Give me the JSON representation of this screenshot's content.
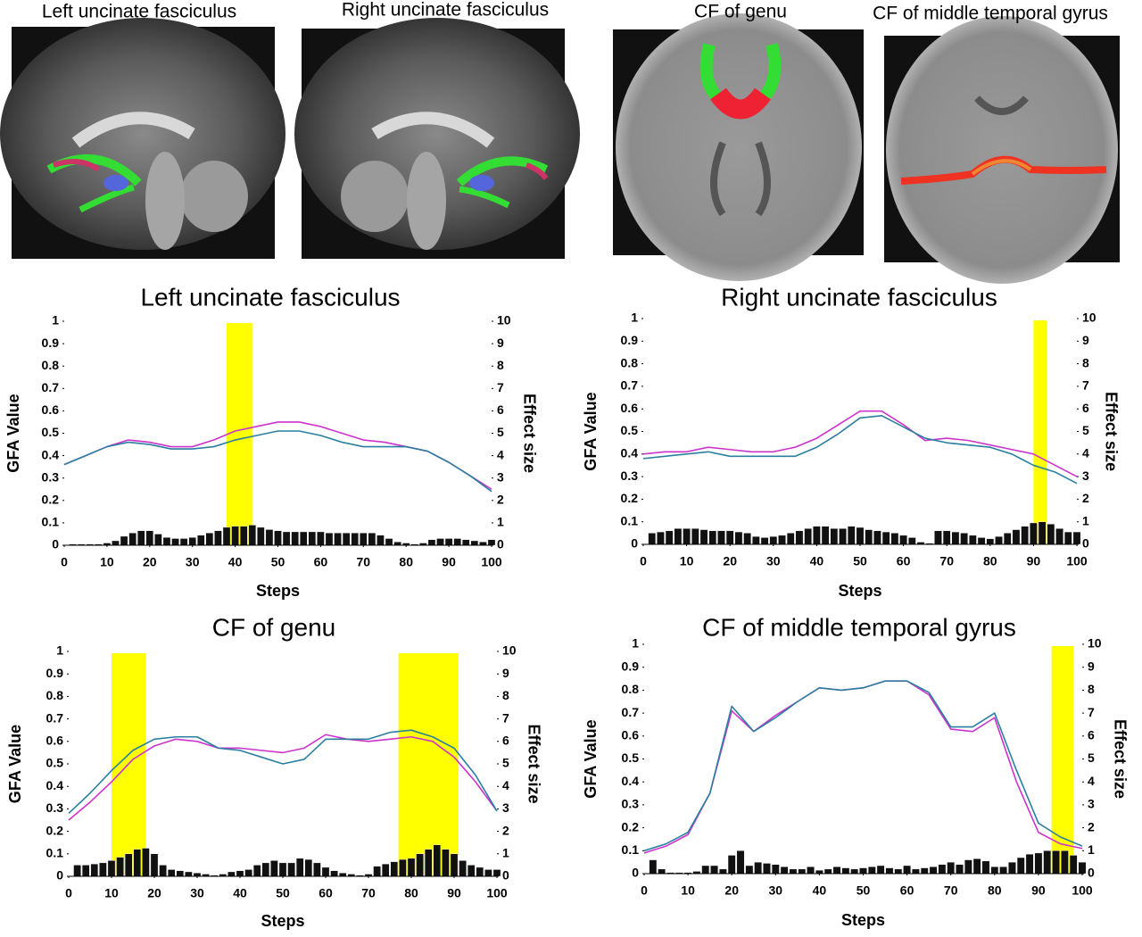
{
  "images": [
    {
      "caption": "Left uncinate fasciculus"
    },
    {
      "caption": "Right uncinate fasciculus"
    },
    {
      "caption": "CF of genu"
    },
    {
      "caption": "CF of middle temporal gyrus"
    }
  ],
  "chart_data": [
    {
      "type": "line",
      "title": "Left uncinate fasciculus",
      "xlabel": "Steps",
      "ylabel": "GFA Value",
      "y2label": "Effect size",
      "xlim": [
        0,
        100
      ],
      "xticks": [
        0,
        10,
        20,
        30,
        40,
        50,
        60,
        70,
        80,
        90,
        100
      ],
      "ylim": [
        0,
        1
      ],
      "yticks": [
        0,
        0.1,
        0.2,
        0.3,
        0.4,
        0.5,
        0.6,
        0.7,
        0.8,
        0.9,
        1
      ],
      "y2lim": [
        0,
        10
      ],
      "y2ticks": [
        0,
        1,
        2,
        3,
        4,
        5,
        6,
        7,
        8,
        9,
        10
      ],
      "x": [
        0,
        5,
        10,
        15,
        20,
        25,
        30,
        35,
        40,
        45,
        50,
        55,
        60,
        65,
        70,
        75,
        80,
        85,
        90,
        95,
        100
      ],
      "series": [
        {
          "color": "#cc33cc",
          "values": [
            0.36,
            0.4,
            0.44,
            0.47,
            0.46,
            0.44,
            0.44,
            0.47,
            0.51,
            0.53,
            0.55,
            0.55,
            0.53,
            0.5,
            0.47,
            0.46,
            0.44,
            0.42,
            0.37,
            0.31,
            0.25
          ]
        },
        {
          "color": "#2a7fa0",
          "values": [
            0.36,
            0.4,
            0.44,
            0.46,
            0.45,
            0.43,
            0.43,
            0.44,
            0.47,
            0.49,
            0.51,
            0.51,
            0.49,
            0.46,
            0.44,
            0.44,
            0.44,
            0.42,
            0.37,
            0.31,
            0.24
          ]
        }
      ],
      "bars": {
        "color": "#111111",
        "axis": "y2",
        "x": [
          2,
          4,
          6,
          8,
          10,
          12,
          14,
          16,
          18,
          20,
          22,
          24,
          26,
          28,
          30,
          32,
          34,
          36,
          38,
          40,
          42,
          44,
          46,
          48,
          50,
          52,
          54,
          56,
          58,
          60,
          62,
          64,
          66,
          68,
          70,
          72,
          74,
          76,
          78,
          80,
          82,
          84,
          86,
          88,
          90,
          92,
          94,
          96,
          98,
          100
        ],
        "values": [
          0.05,
          0.05,
          0.05,
          0.05,
          0.1,
          0.2,
          0.4,
          0.55,
          0.65,
          0.65,
          0.5,
          0.35,
          0.3,
          0.3,
          0.35,
          0.45,
          0.55,
          0.65,
          0.8,
          0.85,
          0.85,
          0.9,
          0.8,
          0.7,
          0.65,
          0.6,
          0.6,
          0.6,
          0.6,
          0.6,
          0.55,
          0.55,
          0.55,
          0.55,
          0.55,
          0.55,
          0.45,
          0.3,
          0.15,
          0.1,
          0.05,
          0.1,
          0.25,
          0.3,
          0.3,
          0.3,
          0.25,
          0.2,
          0.15,
          0.25
        ]
      },
      "highlights": [
        [
          38,
          44
        ]
      ],
      "highlight_color": "#ffff00"
    },
    {
      "type": "line",
      "title": "Right uncinate fasciculus",
      "xlabel": "Steps",
      "ylabel": "GFA Value",
      "y2label": "Effect size",
      "xlim": [
        0,
        100
      ],
      "xticks": [
        0,
        10,
        20,
        30,
        40,
        50,
        60,
        70,
        80,
        90,
        100
      ],
      "ylim": [
        0,
        1
      ],
      "yticks": [
        0,
        0.1,
        0.2,
        0.3,
        0.4,
        0.5,
        0.6,
        0.7,
        0.8,
        0.9,
        1
      ],
      "y2lim": [
        0,
        10
      ],
      "y2ticks": [
        0,
        1,
        2,
        3,
        4,
        5,
        6,
        7,
        8,
        9,
        10
      ],
      "x": [
        0,
        5,
        10,
        15,
        20,
        25,
        30,
        35,
        40,
        45,
        50,
        55,
        60,
        65,
        70,
        75,
        80,
        85,
        90,
        95,
        100
      ],
      "series": [
        {
          "color": "#cc33cc",
          "values": [
            0.4,
            0.41,
            0.41,
            0.43,
            0.42,
            0.41,
            0.41,
            0.43,
            0.47,
            0.53,
            0.59,
            0.59,
            0.53,
            0.46,
            0.47,
            0.46,
            0.44,
            0.42,
            0.4,
            0.35,
            0.3
          ]
        },
        {
          "color": "#2a7fa0",
          "values": [
            0.38,
            0.39,
            0.4,
            0.41,
            0.39,
            0.39,
            0.39,
            0.39,
            0.43,
            0.49,
            0.56,
            0.57,
            0.52,
            0.47,
            0.45,
            0.44,
            0.43,
            0.4,
            0.35,
            0.32,
            0.27
          ]
        }
      ],
      "bars": {
        "color": "#111111",
        "axis": "y2",
        "x": [
          2,
          4,
          6,
          8,
          10,
          12,
          14,
          16,
          18,
          20,
          22,
          24,
          26,
          28,
          30,
          32,
          34,
          36,
          38,
          40,
          42,
          44,
          46,
          48,
          50,
          52,
          54,
          56,
          58,
          60,
          62,
          64,
          66,
          68,
          70,
          72,
          74,
          76,
          78,
          80,
          82,
          84,
          86,
          88,
          90,
          92,
          94,
          96,
          98,
          100
        ],
        "values": [
          0.5,
          0.55,
          0.6,
          0.7,
          0.7,
          0.7,
          0.65,
          0.6,
          0.6,
          0.6,
          0.55,
          0.5,
          0.35,
          0.3,
          0.35,
          0.4,
          0.5,
          0.6,
          0.7,
          0.8,
          0.8,
          0.7,
          0.7,
          0.8,
          0.75,
          0.65,
          0.6,
          0.55,
          0.5,
          0.4,
          0.3,
          0.1,
          0.05,
          0.6,
          0.6,
          0.55,
          0.5,
          0.4,
          0.3,
          0.25,
          0.35,
          0.5,
          0.65,
          0.8,
          0.95,
          1.0,
          0.9,
          0.7,
          0.55,
          0.55
        ]
      },
      "highlights": [
        [
          90,
          93
        ]
      ],
      "highlight_color": "#ffff00"
    },
    {
      "type": "line",
      "title": "CF of genu",
      "xlabel": "Steps",
      "ylabel": "GFA Value",
      "y2label": "Effect size",
      "xlim": [
        0,
        100
      ],
      "xticks": [
        0,
        10,
        20,
        30,
        40,
        50,
        60,
        70,
        80,
        90,
        100
      ],
      "ylim": [
        0,
        1
      ],
      "yticks": [
        0,
        0.1,
        0.2,
        0.3,
        0.4,
        0.5,
        0.6,
        0.7,
        0.8,
        0.9,
        1
      ],
      "y2lim": [
        0,
        10
      ],
      "y2ticks": [
        0,
        1,
        2,
        3,
        4,
        5,
        6,
        7,
        8,
        9,
        10
      ],
      "x": [
        0,
        5,
        10,
        15,
        20,
        25,
        30,
        35,
        40,
        45,
        50,
        55,
        60,
        65,
        70,
        75,
        80,
        85,
        90,
        95,
        100
      ],
      "series": [
        {
          "color": "#cc33cc",
          "values": [
            0.25,
            0.33,
            0.42,
            0.52,
            0.58,
            0.61,
            0.6,
            0.57,
            0.57,
            0.56,
            0.55,
            0.57,
            0.63,
            0.61,
            0.6,
            0.61,
            0.62,
            0.6,
            0.53,
            0.42,
            0.29
          ]
        },
        {
          "color": "#2a7fa0",
          "values": [
            0.28,
            0.37,
            0.47,
            0.56,
            0.61,
            0.62,
            0.62,
            0.57,
            0.56,
            0.53,
            0.5,
            0.52,
            0.61,
            0.61,
            0.61,
            0.64,
            0.65,
            0.62,
            0.57,
            0.45,
            0.29
          ]
        }
      ],
      "bars": {
        "color": "#111111",
        "axis": "y2",
        "x": [
          2,
          4,
          6,
          8,
          10,
          12,
          14,
          16,
          18,
          20,
          22,
          24,
          26,
          28,
          30,
          32,
          34,
          36,
          38,
          40,
          42,
          44,
          46,
          48,
          50,
          52,
          54,
          56,
          58,
          60,
          62,
          64,
          66,
          68,
          70,
          72,
          74,
          76,
          78,
          80,
          82,
          84,
          86,
          88,
          90,
          92,
          94,
          96,
          98,
          100
        ],
        "values": [
          0.5,
          0.5,
          0.55,
          0.6,
          0.7,
          0.85,
          1.0,
          1.2,
          1.25,
          1.0,
          0.5,
          0.3,
          0.25,
          0.2,
          0.15,
          0.1,
          0.05,
          0.1,
          0.2,
          0.25,
          0.3,
          0.5,
          0.6,
          0.7,
          0.6,
          0.6,
          0.8,
          0.75,
          0.6,
          0.4,
          0.25,
          0.15,
          0.1,
          0.05,
          0.1,
          0.45,
          0.55,
          0.65,
          0.75,
          0.8,
          1.0,
          1.2,
          1.4,
          1.2,
          1.0,
          0.7,
          0.5,
          0.4,
          0.3,
          0.3
        ]
      },
      "highlights": [
        [
          10,
          18
        ],
        [
          77,
          91
        ]
      ],
      "highlight_color": "#ffff00"
    },
    {
      "type": "line",
      "title": "CF of middle temporal gyrus",
      "xlabel": "Steps",
      "ylabel": "GFA Value",
      "y2label": "Effect size",
      "xlim": [
        0,
        100
      ],
      "xticks": [
        0,
        10,
        20,
        30,
        40,
        50,
        60,
        70,
        80,
        90,
        100
      ],
      "ylim": [
        0,
        1
      ],
      "yticks": [
        0,
        0.1,
        0.2,
        0.3,
        0.4,
        0.5,
        0.6,
        0.7,
        0.8,
        0.9,
        1
      ],
      "y2lim": [
        0,
        10
      ],
      "y2ticks": [
        0,
        1,
        2,
        3,
        4,
        5,
        6,
        7,
        8,
        9,
        10
      ],
      "x": [
        0,
        5,
        10,
        15,
        20,
        25,
        30,
        35,
        40,
        45,
        50,
        55,
        60,
        65,
        70,
        75,
        80,
        85,
        90,
        95,
        100
      ],
      "series": [
        {
          "color": "#cc33cc",
          "values": [
            0.09,
            0.12,
            0.17,
            0.35,
            0.71,
            0.62,
            0.69,
            0.75,
            0.81,
            0.8,
            0.81,
            0.84,
            0.84,
            0.78,
            0.63,
            0.62,
            0.68,
            0.4,
            0.18,
            0.13,
            0.11
          ]
        },
        {
          "color": "#2a7fa0",
          "values": [
            0.1,
            0.13,
            0.18,
            0.35,
            0.73,
            0.62,
            0.68,
            0.75,
            0.81,
            0.8,
            0.81,
            0.84,
            0.84,
            0.79,
            0.64,
            0.64,
            0.7,
            0.45,
            0.22,
            0.16,
            0.12
          ]
        }
      ],
      "bars": {
        "color": "#111111",
        "axis": "y2",
        "x": [
          2,
          4,
          6,
          8,
          10,
          12,
          14,
          16,
          18,
          20,
          22,
          24,
          26,
          28,
          30,
          32,
          34,
          36,
          38,
          40,
          42,
          44,
          46,
          48,
          50,
          52,
          54,
          56,
          58,
          60,
          62,
          64,
          66,
          68,
          70,
          72,
          74,
          76,
          78,
          80,
          82,
          84,
          86,
          88,
          90,
          92,
          94,
          96,
          98,
          100
        ],
        "values": [
          0.6,
          0.2,
          0.05,
          0.05,
          0.05,
          0.1,
          0.35,
          0.35,
          0.2,
          0.8,
          1.0,
          0.35,
          0.5,
          0.45,
          0.4,
          0.3,
          0.2,
          0.2,
          0.3,
          0.15,
          0.2,
          0.3,
          0.25,
          0.2,
          0.25,
          0.3,
          0.35,
          0.25,
          0.2,
          0.35,
          0.2,
          0.25,
          0.3,
          0.4,
          0.5,
          0.4,
          0.6,
          0.65,
          0.55,
          0.3,
          0.3,
          0.5,
          0.7,
          0.85,
          0.9,
          1.0,
          1.0,
          1.0,
          0.8,
          0.5
        ]
      },
      "highlights": [
        [
          93,
          98
        ]
      ],
      "highlight_color": "#ffff00"
    }
  ]
}
